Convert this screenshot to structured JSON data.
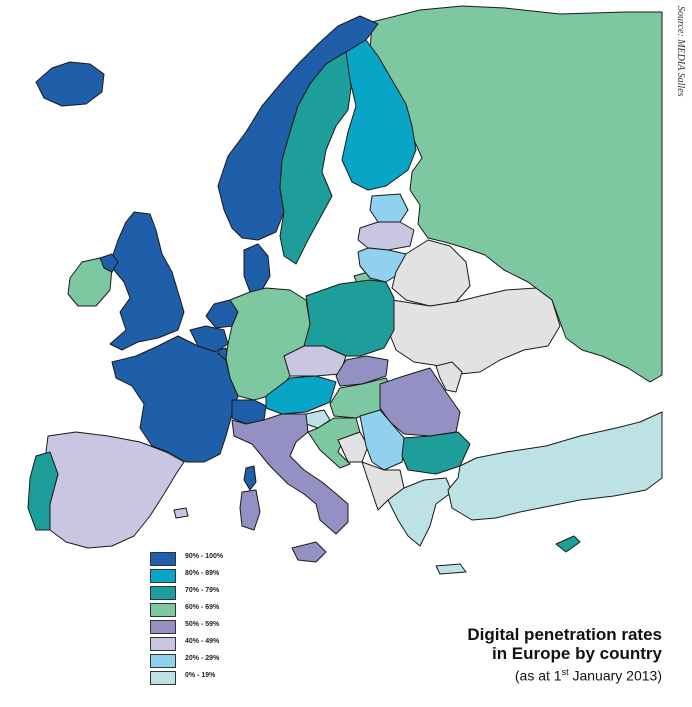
{
  "source_note": "Source: MEDIA Salles",
  "title": {
    "line1": "Digital penetration rates",
    "line2": "in Europe by country",
    "subtitle_prefix": "(as at 1",
    "subtitle_superscript": "st",
    "subtitle_suffix": " January 2013)"
  },
  "legend": [
    {
      "label": "90% - 100%",
      "color": "#1f5ea8"
    },
    {
      "label": "80% - 89%",
      "color": "#08a5c6"
    },
    {
      "label": "70% - 79%",
      "color": "#1d9e9b"
    },
    {
      "label": "60% - 69%",
      "color": "#7dc8a0"
    },
    {
      "label": "50% - 59%",
      "color": "#9590c4"
    },
    {
      "label": "40% - 49%",
      "color": "#c9c6e2"
    },
    {
      "label": "20% - 29%",
      "color": "#8fd1ee"
    },
    {
      "label": "0% - 19%",
      "color": "#bde2e6"
    }
  ],
  "colors": {
    "no_data": "#e2e2e2",
    "border": "#1a1a1a",
    "background": "#ffffff"
  },
  "countries": [
    {
      "name": "Iceland",
      "band": "90% - 100%"
    },
    {
      "name": "Ireland",
      "band": "60% - 69%"
    },
    {
      "name": "United Kingdom",
      "band": "90% - 100%"
    },
    {
      "name": "Norway",
      "band": "90% - 100%"
    },
    {
      "name": "Sweden",
      "band": "70% - 79%"
    },
    {
      "name": "Finland",
      "band": "80% - 89%"
    },
    {
      "name": "Denmark",
      "band": "90% - 100%"
    },
    {
      "name": "Estonia",
      "band": "20% - 29%"
    },
    {
      "name": "Latvia",
      "band": "40% - 49%"
    },
    {
      "name": "Lithuania",
      "band": "20% - 29%"
    },
    {
      "name": "Russia",
      "band": "60% - 69%"
    },
    {
      "name": "Netherlands",
      "band": "90% - 100%"
    },
    {
      "name": "Belgium",
      "band": "90% - 100%"
    },
    {
      "name": "Luxembourg",
      "band": "90% - 100%"
    },
    {
      "name": "France",
      "band": "90% - 100%"
    },
    {
      "name": "Germany",
      "band": "60% - 69%"
    },
    {
      "name": "Poland",
      "band": "70% - 79%"
    },
    {
      "name": "Czech Republic",
      "band": "40% - 49%"
    },
    {
      "name": "Slovakia",
      "band": "50% - 59%"
    },
    {
      "name": "Austria",
      "band": "80% - 89%"
    },
    {
      "name": "Switzerland",
      "band": "90% - 100%"
    },
    {
      "name": "Hungary",
      "band": "60% - 69%"
    },
    {
      "name": "Slovenia",
      "band": "0% - 19%"
    },
    {
      "name": "Croatia",
      "band": "60% - 69%"
    },
    {
      "name": "Serbia",
      "band": "20% - 29%"
    },
    {
      "name": "Romania",
      "band": "50% - 59%"
    },
    {
      "name": "Bulgaria",
      "band": "70% - 79%"
    },
    {
      "name": "Greece",
      "band": "0% - 19%"
    },
    {
      "name": "Turkey",
      "band": "0% - 19%"
    },
    {
      "name": "Cyprus",
      "band": "70% - 79%"
    },
    {
      "name": "Italy",
      "band": "50% - 59%"
    },
    {
      "name": "Spain",
      "band": "40% - 49%"
    },
    {
      "name": "Portugal",
      "band": "70% - 79%"
    }
  ]
}
